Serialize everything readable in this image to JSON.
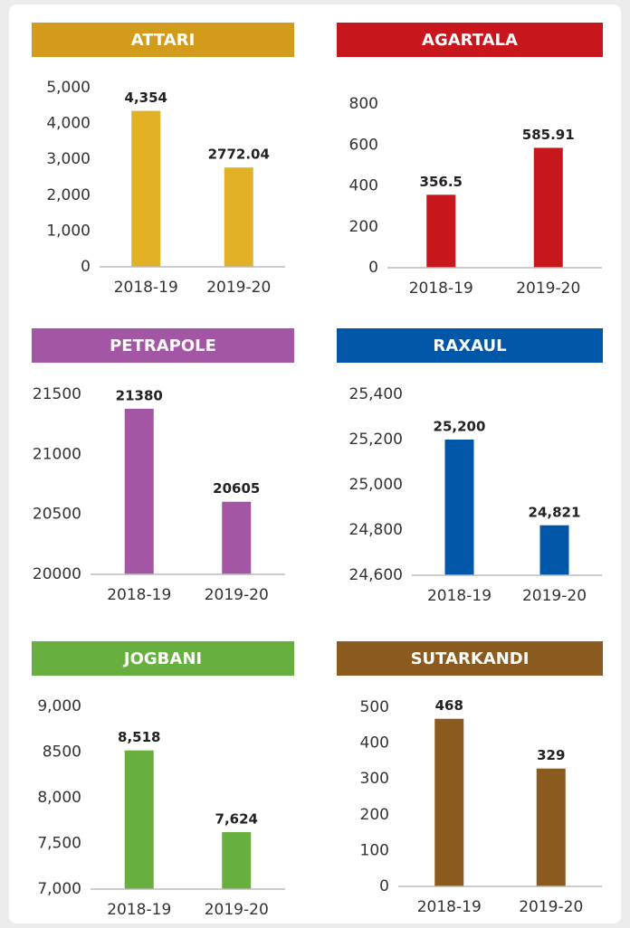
{
  "chart_data": [
    {
      "type": "bar",
      "title": "ATTARI",
      "categories": [
        "2018-19",
        "2019-20"
      ],
      "values": [
        4354,
        2772.04
      ],
      "value_labels": [
        "4,354",
        "2772.04"
      ],
      "color": "#e2b024",
      "title_color": "#d29b1c",
      "ylim": [
        0,
        5000
      ],
      "yticks": [
        0,
        {
          "value": 1000,
          "label": "1,000"
        },
        {
          "value": 2000,
          "label": "2,000"
        },
        {
          "value": 3000,
          "label": "3,000"
        },
        {
          "value": 4000,
          "label": "4,000"
        },
        {
          "value": 5000,
          "label": "5,000"
        }
      ]
    },
    {
      "type": "bar",
      "title": "AGARTALA",
      "categories": [
        "2018-19",
        "2019-20"
      ],
      "values": [
        356.5,
        585.91
      ],
      "color": "#c8161d",
      "title_color": "#c8161d",
      "ylim": [
        0,
        800
      ],
      "yticks": [
        0,
        200,
        400,
        600,
        800
      ]
    },
    {
      "type": "bar",
      "title": "PETRAPOLE",
      "categories": [
        "2018-19",
        "2019-20"
      ],
      "values": [
        21380,
        20605
      ],
      "color": "#a356a3",
      "title_color": "#a356a3",
      "ylim": [
        20000,
        21500
      ],
      "yticks": [
        20000,
        20500,
        21000,
        21500
      ]
    },
    {
      "type": "bar",
      "title": "RAXAUL",
      "categories": [
        "2018-19",
        "2019-20"
      ],
      "values": [
        25200,
        24821
      ],
      "value_labels": [
        "25,200",
        "24,821"
      ],
      "color": "#0057a8",
      "title_color": "#0057a8",
      "ylim": [
        24600,
        25400
      ],
      "yticks": [
        {
          "value": 24600,
          "label": "24,600"
        },
        {
          "value": 24800,
          "label": "24,800"
        },
        {
          "value": 25000,
          "label": "25,000"
        },
        {
          "value": 25200,
          "label": "25,200"
        },
        {
          "value": 25400,
          "label": "25,400"
        }
      ]
    },
    {
      "type": "bar",
      "title": "JOGBANI",
      "categories": [
        "2018-19",
        "2019-20"
      ],
      "values": [
        8518,
        7624
      ],
      "value_labels": [
        "8,518",
        "7,624"
      ],
      "color": "#67b03f",
      "title_color": "#67b03f",
      "ylim": [
        7000,
        9000
      ],
      "yticks": [
        {
          "value": 7000,
          "label": "7,000"
        },
        {
          "value": 7500,
          "label": "7,500"
        },
        {
          "value": 8000,
          "label": "8,000"
        },
        8500,
        {
          "value": 9000,
          "label": "9,000"
        }
      ]
    },
    {
      "type": "bar",
      "title": "SUTARKANDI",
      "categories": [
        "2018-19",
        "2019-20"
      ],
      "values": [
        468,
        329
      ],
      "color": "#8b5a1e",
      "title_color": "#8b5a1e",
      "ylim": [
        0,
        500
      ],
      "yticks": [
        0,
        100,
        200,
        300,
        400,
        500
      ]
    }
  ]
}
